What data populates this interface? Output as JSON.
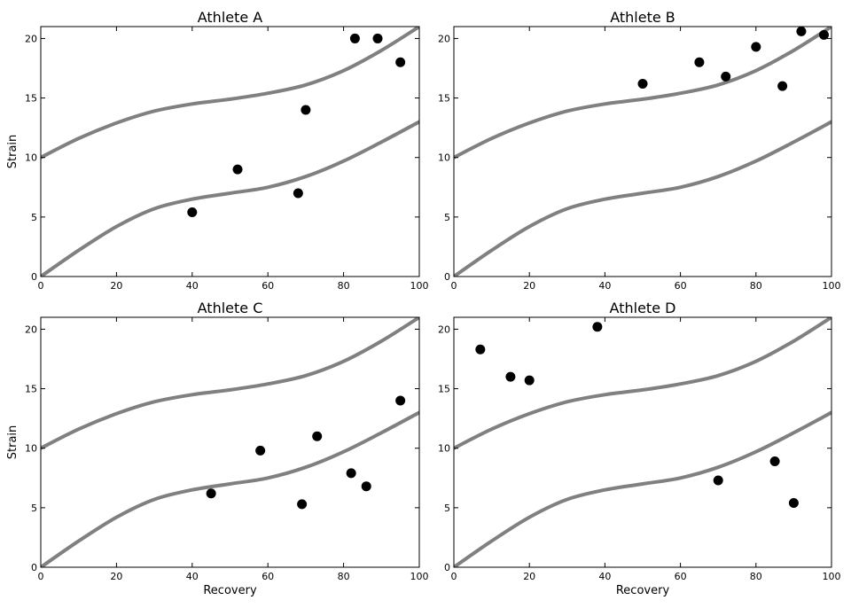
{
  "colors": {
    "band": "#808080",
    "point": "#000000",
    "frame": "#000000",
    "background": "#ffffff"
  },
  "chart_data": [
    {
      "type": "scatter",
      "title": "Athlete A",
      "xlabel": "",
      "ylabel": "Strain",
      "xlim": [
        0,
        100
      ],
      "ylim": [
        0,
        21
      ],
      "xticks": [
        "0",
        "20",
        "40",
        "60",
        "80",
        "100"
      ],
      "yticks": [
        "0",
        "5",
        "10",
        "15",
        "20"
      ],
      "points": [
        {
          "x": 40,
          "y": 5.4
        },
        {
          "x": 52,
          "y": 9.0
        },
        {
          "x": 68,
          "y": 7.0
        },
        {
          "x": 70,
          "y": 14.0
        },
        {
          "x": 83,
          "y": 20.0
        },
        {
          "x": 89,
          "y": 20.0
        },
        {
          "x": 95,
          "y": 18.0
        }
      ]
    },
    {
      "type": "scatter",
      "title": "Athlete B",
      "xlabel": "",
      "ylabel": "",
      "xlim": [
        0,
        100
      ],
      "ylim": [
        0,
        21
      ],
      "xticks": [
        "0",
        "20",
        "40",
        "60",
        "80",
        "100"
      ],
      "yticks": [
        "0",
        "5",
        "10",
        "15",
        "20"
      ],
      "points": [
        {
          "x": 50,
          "y": 16.2
        },
        {
          "x": 65,
          "y": 18.0
        },
        {
          "x": 72,
          "y": 16.8
        },
        {
          "x": 80,
          "y": 19.3
        },
        {
          "x": 87,
          "y": 16.0
        },
        {
          "x": 92,
          "y": 20.6
        },
        {
          "x": 98,
          "y": 20.3
        }
      ]
    },
    {
      "type": "scatter",
      "title": "Athlete C",
      "xlabel": "Recovery",
      "ylabel": "Strain",
      "xlim": [
        0,
        100
      ],
      "ylim": [
        0,
        21
      ],
      "xticks": [
        "0",
        "20",
        "40",
        "60",
        "80",
        "100"
      ],
      "yticks": [
        "0",
        "5",
        "10",
        "15",
        "20"
      ],
      "points": [
        {
          "x": 45,
          "y": 6.2
        },
        {
          "x": 58,
          "y": 9.8
        },
        {
          "x": 69,
          "y": 5.3
        },
        {
          "x": 73,
          "y": 11.0
        },
        {
          "x": 82,
          "y": 7.9
        },
        {
          "x": 86,
          "y": 6.8
        },
        {
          "x": 95,
          "y": 14.0
        }
      ]
    },
    {
      "type": "scatter",
      "title": "Athlete D",
      "xlabel": "Recovery",
      "ylabel": "",
      "xlim": [
        0,
        100
      ],
      "ylim": [
        0,
        21
      ],
      "xticks": [
        "0",
        "20",
        "40",
        "60",
        "80",
        "100"
      ],
      "yticks": [
        "0",
        "5",
        "10",
        "15",
        "20"
      ],
      "points": [
        {
          "x": 7,
          "y": 18.3
        },
        {
          "x": 15,
          "y": 16.0
        },
        {
          "x": 20,
          "y": 15.7
        },
        {
          "x": 38,
          "y": 20.2
        },
        {
          "x": 70,
          "y": 7.3
        },
        {
          "x": 85,
          "y": 8.9
        },
        {
          "x": 90,
          "y": 5.4
        }
      ]
    }
  ],
  "band_curves": {
    "upper": [
      {
        "x": 0,
        "y": 10.0
      },
      {
        "x": 10,
        "y": 11.6
      },
      {
        "x": 20,
        "y": 12.9
      },
      {
        "x": 30,
        "y": 13.9
      },
      {
        "x": 40,
        "y": 14.5
      },
      {
        "x": 50,
        "y": 14.9
      },
      {
        "x": 60,
        "y": 15.4
      },
      {
        "x": 70,
        "y": 16.1
      },
      {
        "x": 80,
        "y": 17.3
      },
      {
        "x": 90,
        "y": 19.0
      },
      {
        "x": 100,
        "y": 21.0
      }
    ],
    "lower": [
      {
        "x": 0,
        "y": 0.0
      },
      {
        "x": 10,
        "y": 2.2
      },
      {
        "x": 20,
        "y": 4.2
      },
      {
        "x": 30,
        "y": 5.7
      },
      {
        "x": 40,
        "y": 6.5
      },
      {
        "x": 50,
        "y": 7.0
      },
      {
        "x": 60,
        "y": 7.5
      },
      {
        "x": 70,
        "y": 8.4
      },
      {
        "x": 80,
        "y": 9.7
      },
      {
        "x": 90,
        "y": 11.3
      },
      {
        "x": 100,
        "y": 13.0
      }
    ]
  }
}
